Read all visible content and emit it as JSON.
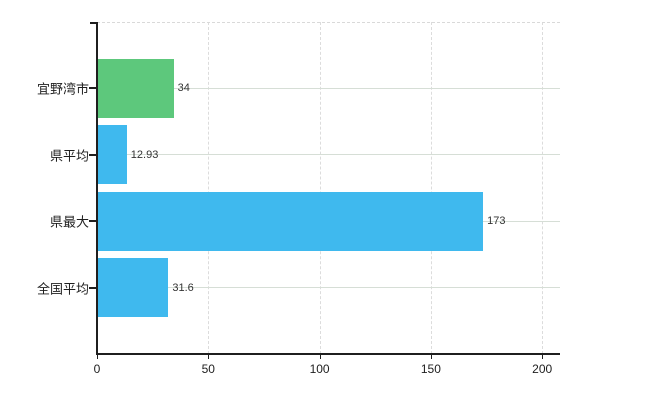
{
  "chart_data": {
    "type": "bar",
    "orientation": "horizontal",
    "title": "",
    "xlabel": "",
    "ylabel": "",
    "categories": [
      "宜野湾市",
      "県平均",
      "県最大",
      "全国平均"
    ],
    "values": [
      34,
      12.93,
      173,
      31.6
    ],
    "value_labels": [
      "34",
      "12.93",
      "173",
      "31.6"
    ],
    "bar_colors": [
      "#5dc87c",
      "#3fb9ee",
      "#3fb9ee",
      "#3fb9ee"
    ],
    "x_ticks": [
      0,
      50,
      100,
      150,
      200
    ],
    "x_tick_labels": [
      "0",
      "50",
      "100",
      "150",
      "200"
    ],
    "xlim": [
      0,
      208
    ],
    "grid": "on",
    "legend": "none",
    "colors": {
      "bar_green": "#5dc87c",
      "bar_blue": "#3fb9ee",
      "axis": "#1f1f1f",
      "v_gridline": "#dcdcdc",
      "h_gridline": "#d6ded6",
      "label_text": "#1e1e1e",
      "value_text": "#333333",
      "background": "#ffffff"
    }
  }
}
